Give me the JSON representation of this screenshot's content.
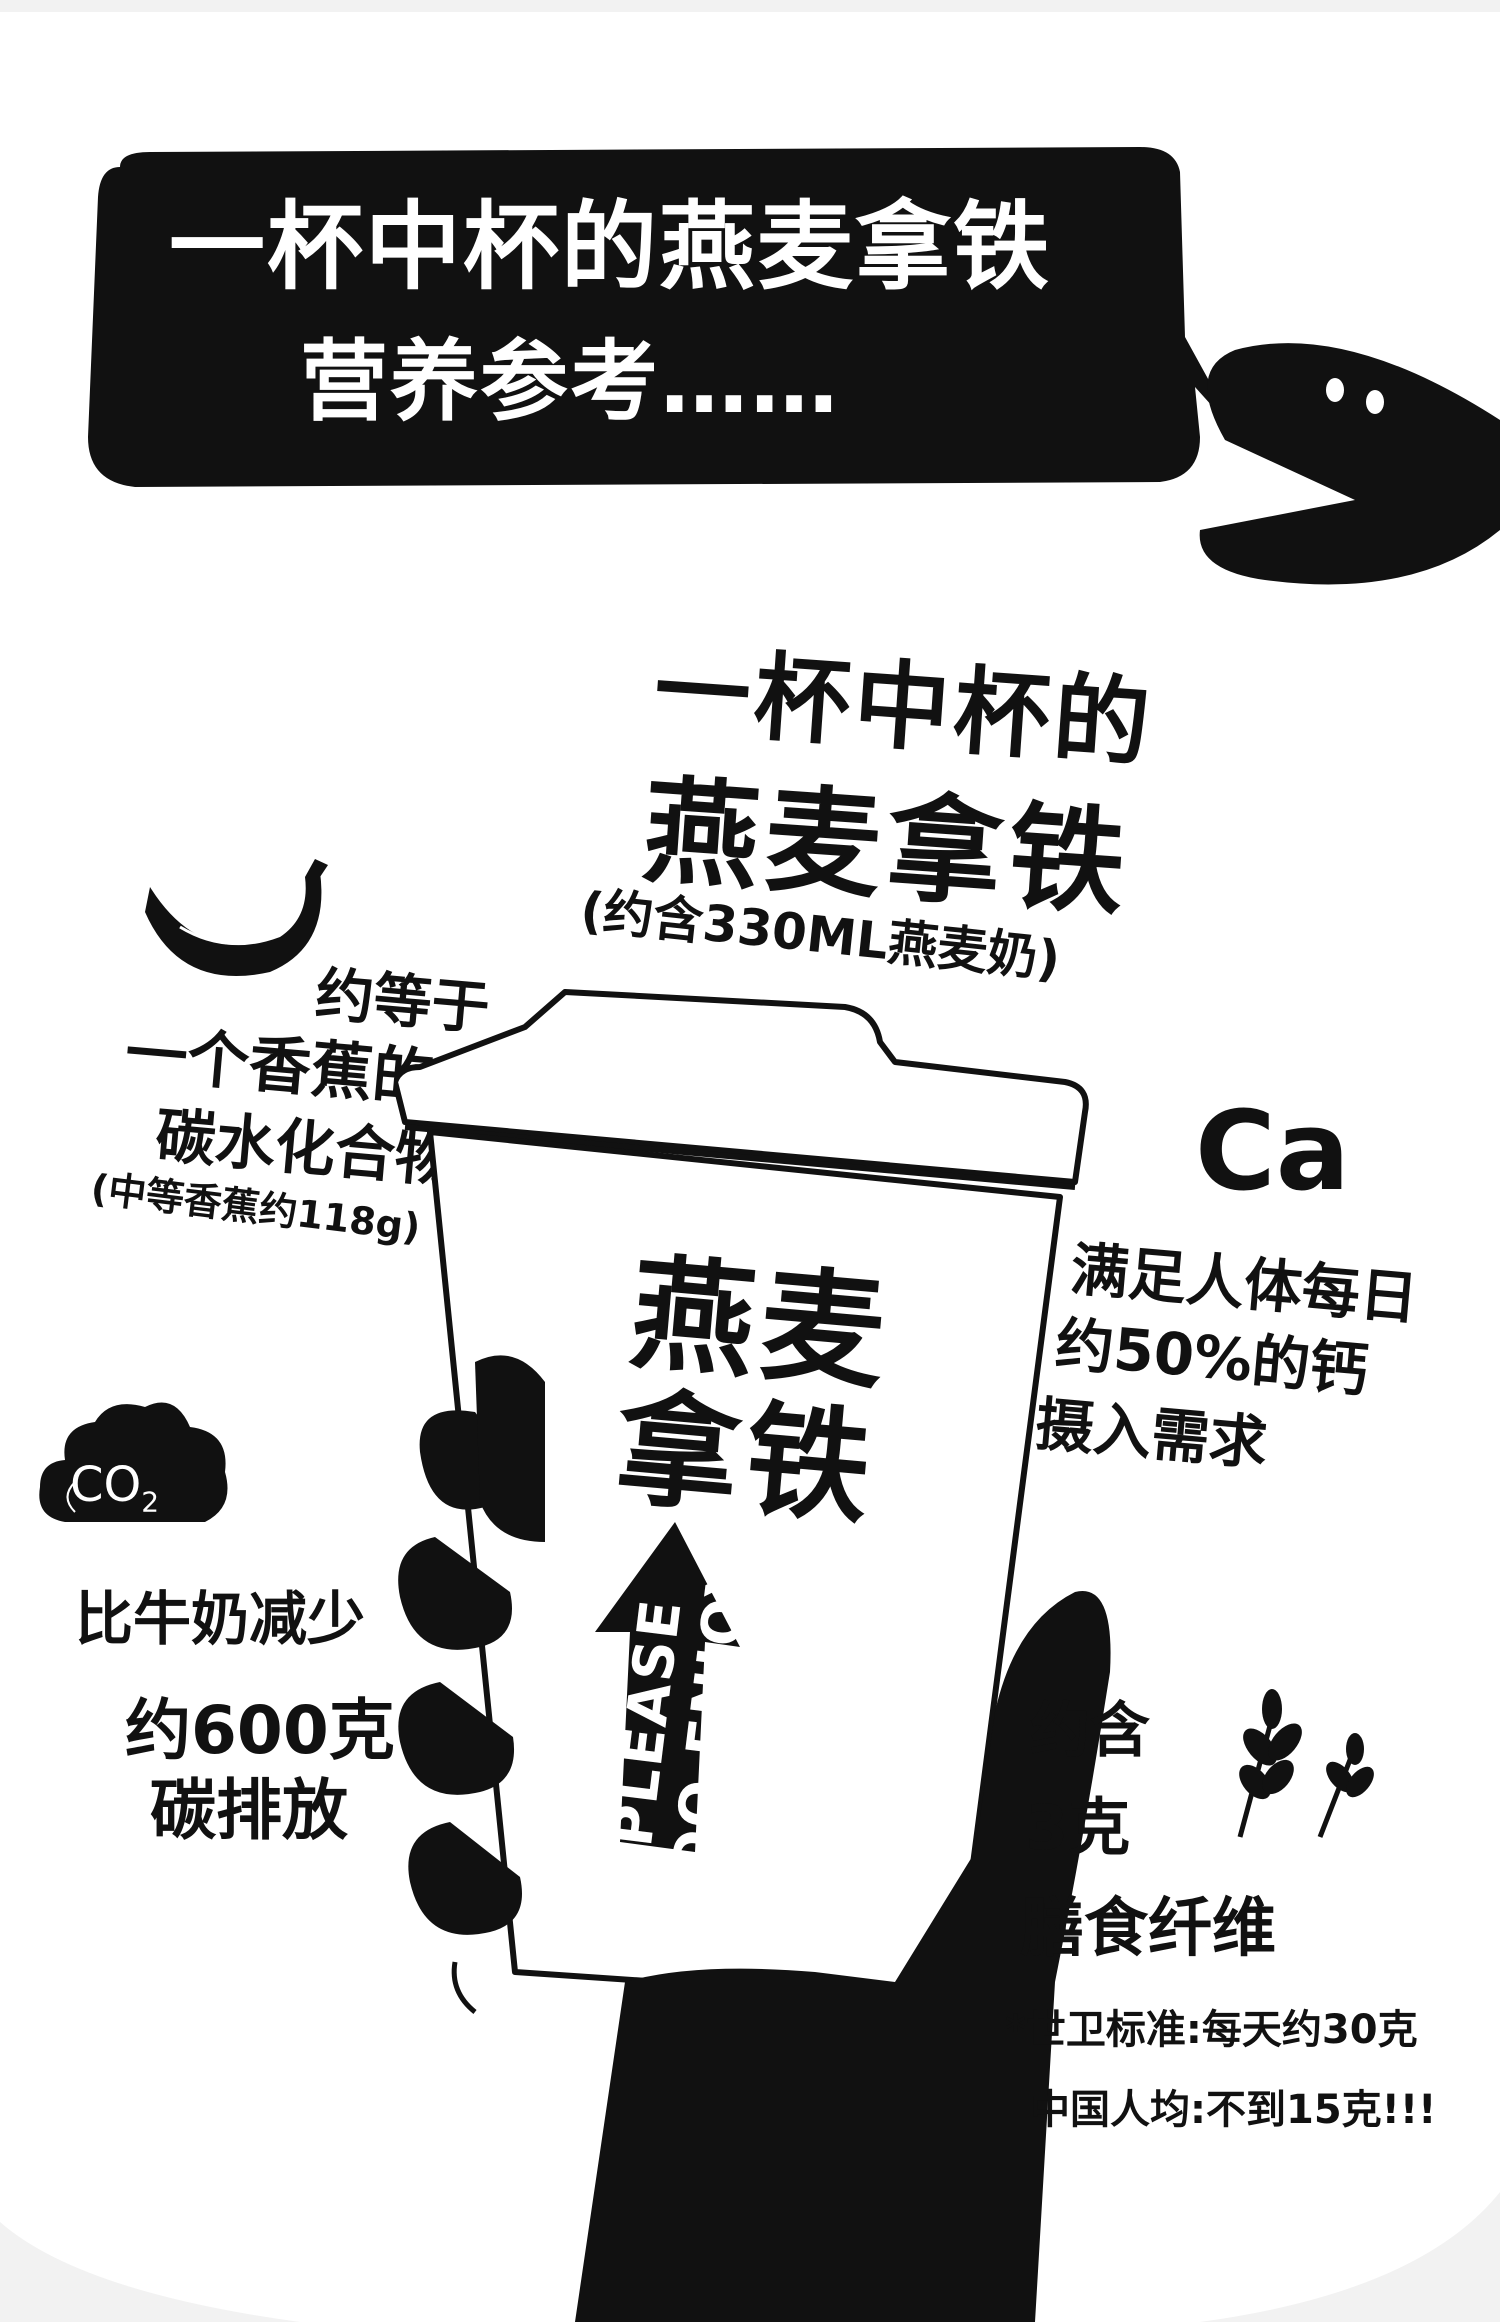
{
  "header": {
    "line1": "一杯中杯的燕麦拿铁",
    "line2": "营养参考……"
  },
  "main_title": {
    "line1": "一杯中杯的",
    "line2": "燕麦拿铁",
    "note": "(约含330ML燕麦奶)"
  },
  "banana": {
    "line1": "约等于",
    "line2": "一个香蕉的",
    "line3": "碳水化合物",
    "note": "(中等香蕉约118g)"
  },
  "calcium": {
    "symbol": "Ca",
    "line1": "满足人体每日",
    "line2": "约50%的钙",
    "line3": "摄入需求"
  },
  "carbon": {
    "cloud_label_main": "CO",
    "cloud_label_sub": "2",
    "line1": "比牛奶减少",
    "line2": "约600克",
    "line3": "碳排放"
  },
  "cup": {
    "label_line1": "燕麦",
    "label_line2": "拿铁",
    "arrow_line1": "PLEASE",
    "arrow_line2": "DO ENJOY!"
  },
  "fiber": {
    "line1": "约含",
    "line2": "3克",
    "line3": "膳食纤维",
    "note_line1": "*世卫标准:每天约30克",
    "note_line2": "中国人均:不到15克!!!"
  },
  "icons": [
    "speech-bubble",
    "pacman-mascot",
    "banana-icon",
    "co2-cloud-icon",
    "oat-plant-icon",
    "coffee-cup",
    "hand"
  ],
  "colors": {
    "ink": "#111111",
    "paper": "#ffffff"
  }
}
